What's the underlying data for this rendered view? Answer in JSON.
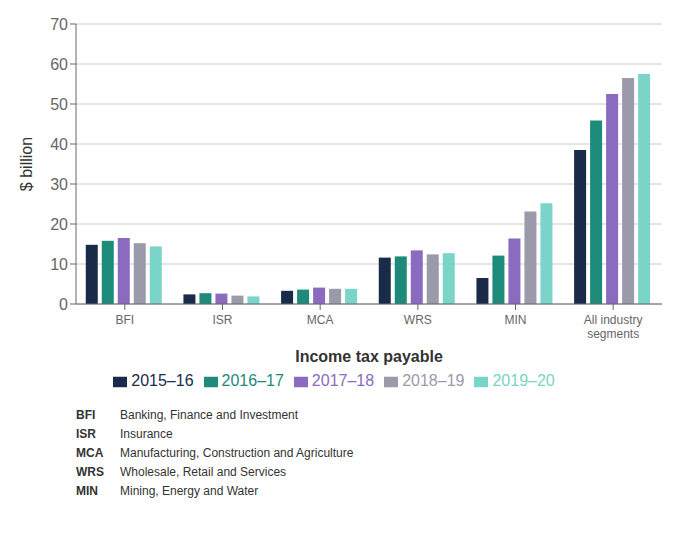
{
  "chart_data": {
    "type": "bar",
    "categories": [
      "BFI",
      "ISR",
      "MCA",
      "WRS",
      "MIN",
      "All industry\nsegments"
    ],
    "series": [
      {
        "name": "2015–16",
        "color": "#1a2b4a",
        "values": [
          14.8,
          2.4,
          3.3,
          11.6,
          6.5,
          38.5
        ]
      },
      {
        "name": "2016–17",
        "color": "#1d8a7a",
        "values": [
          15.8,
          2.7,
          3.6,
          11.9,
          12.1,
          45.9
        ]
      },
      {
        "name": "2017–18",
        "color": "#8a6bbf",
        "values": [
          16.5,
          2.6,
          4.1,
          13.4,
          16.4,
          52.5
        ]
      },
      {
        "name": "2018–19",
        "color": "#9a9aaa",
        "values": [
          15.2,
          2.1,
          3.8,
          12.4,
          23.1,
          56.5
        ]
      },
      {
        "name": "2019–20",
        "color": "#7ad4c8",
        "values": [
          14.4,
          1.9,
          3.8,
          12.7,
          25.2,
          57.5
        ]
      }
    ],
    "xlabel": "Income tax payable",
    "ylabel": "$ billion",
    "ylim": [
      0,
      70
    ],
    "yticks": [
      0,
      10,
      20,
      30,
      40,
      50,
      60,
      70
    ],
    "grid": true,
    "legend": "bottom",
    "annotations": [
      [
        "BFI",
        "Banking, Finance and Investment"
      ],
      [
        "ISR",
        "Insurance"
      ],
      [
        "MCA",
        "Manufacturing, Construction and Agriculture"
      ],
      [
        "WRS",
        "Wholesale, Retail and Services"
      ],
      [
        "MIN",
        "Mining, Energy and Water"
      ]
    ]
  }
}
